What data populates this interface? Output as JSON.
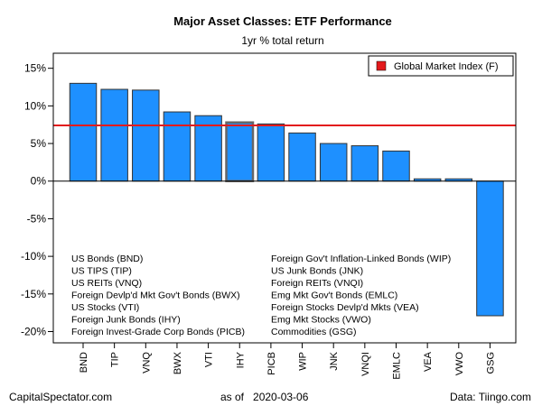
{
  "chart_data": {
    "type": "bar",
    "title": "Major Asset Classes: ETF Performance",
    "subtitle": "1yr % total return",
    "categories": [
      "BND",
      "TIP",
      "VNQ",
      "BWX",
      "VTI",
      "IHY",
      "PICB",
      "WIP",
      "JNK",
      "VNQI",
      "EMLC",
      "VEA",
      "VWO",
      "GSG"
    ],
    "values": [
      13.0,
      12.2,
      12.1,
      9.2,
      8.7,
      7.8,
      7.6,
      6.4,
      5.0,
      4.7,
      4.0,
      0.3,
      0.3,
      -17.9
    ],
    "bar_outline_color": "#333333",
    "highlight_outline_color": "#666666",
    "highlight_category": "IHY",
    "bar_color": "#1e90ff",
    "reference_line": {
      "label": "Global Market Index (F)",
      "value": 7.4,
      "color": "#e31a1c"
    },
    "ylim": [
      -21.5,
      17
    ],
    "yticks": [
      -20,
      -15,
      -10,
      -5,
      0,
      5,
      10,
      15
    ],
    "ytick_labels": [
      "-20%",
      "-15%",
      "-10%",
      "-5%",
      "0%",
      "5%",
      "10%",
      "15%"
    ],
    "grid": false,
    "legend_position": "top-right",
    "key_left": [
      "US Bonds (BND)",
      "US TIPS (TIP)",
      "US REITs (VNQ)",
      "Foreign Devlp'd Mkt Gov't Bonds (BWX)",
      "US Stocks (VTI)",
      "Foreign Junk Bonds (IHY)",
      "Foreign Invest-Grade Corp Bonds (PICB)"
    ],
    "key_right": [
      "Foreign Gov't Inflation-Linked Bonds (WIP)",
      "US Junk Bonds (JNK)",
      "Foreign REITs (VNQI)",
      "Emg Mkt Gov't Bonds (EMLC)",
      "Foreign Stocks Devlp'd Mkts (VEA)",
      "Emg Mkt Stocks (VWO)",
      "Commodities (GSG)"
    ]
  },
  "footer": {
    "left": "CapitalSpectator.com",
    "center": "as of   2020-03-06",
    "right": "Data: Tiingo.com"
  }
}
